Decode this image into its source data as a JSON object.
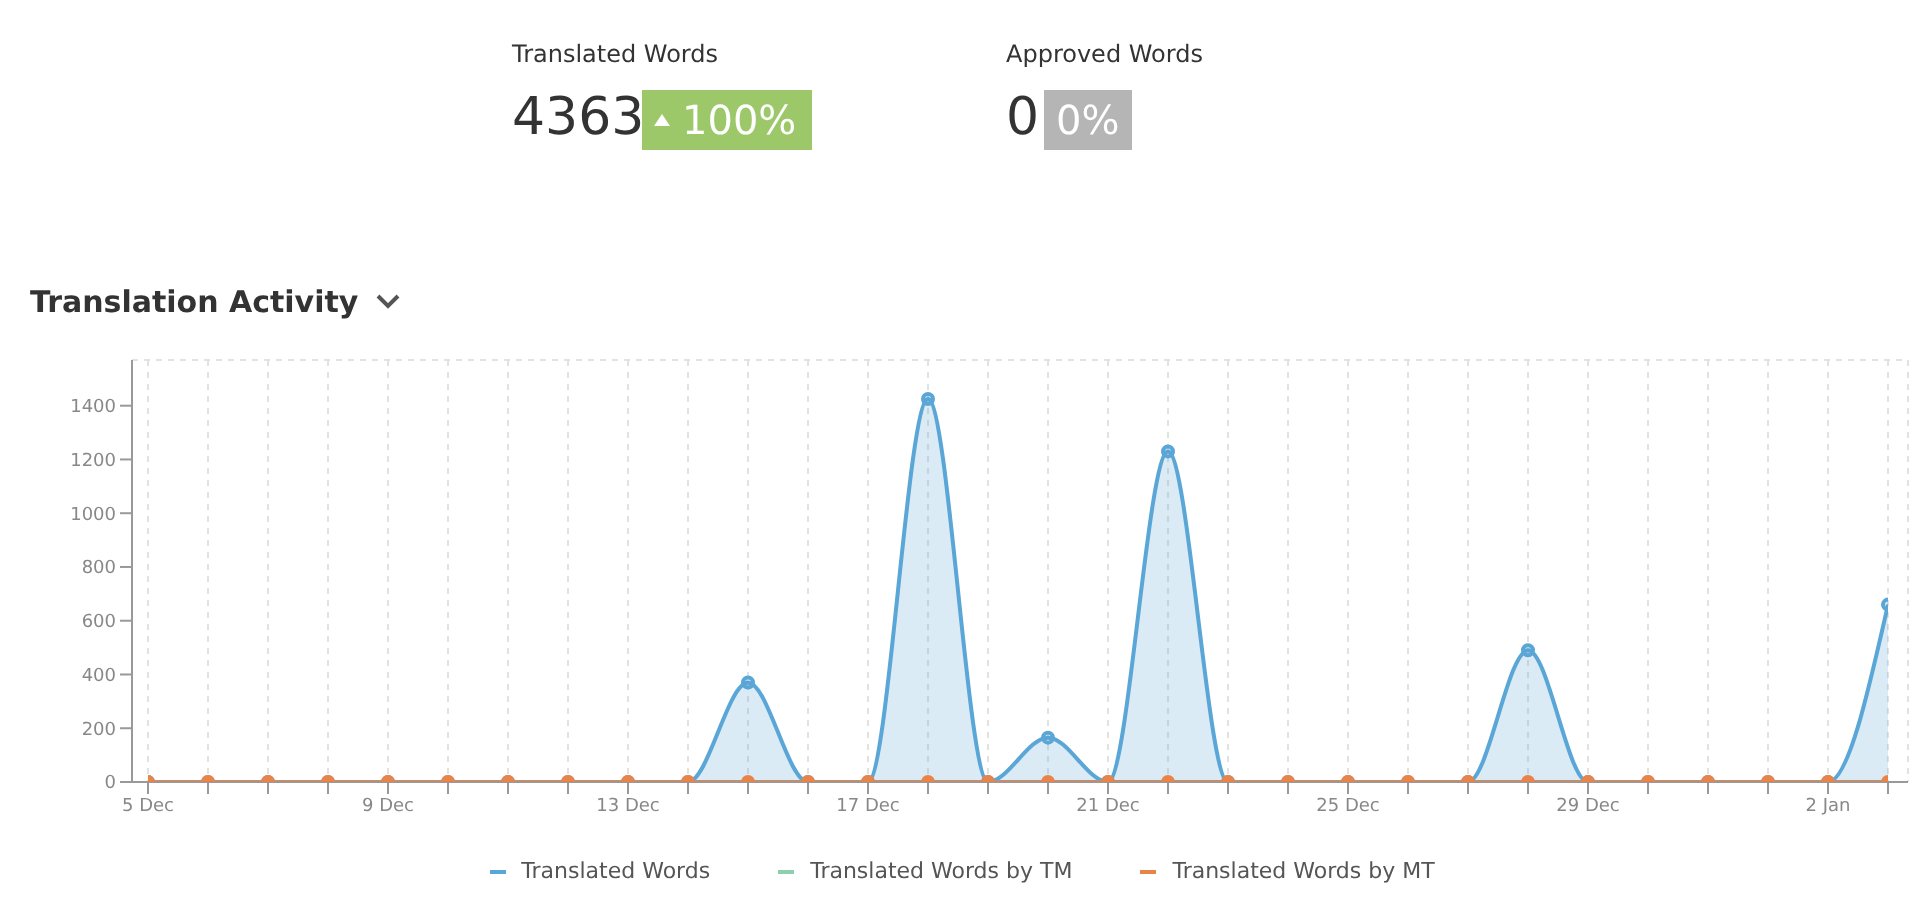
{
  "chart_data": [
    {
      "type": "other",
      "annotations": [
        "Translated Words",
        "4363",
        "100%",
        "Approved Words",
        "0",
        "0%"
      ]
    },
    {
      "type": "area",
      "title": "Translation Activity",
      "categories": [
        "5 Dec",
        null,
        null,
        null,
        "9 Dec",
        null,
        null,
        null,
        "13 Dec",
        null,
        null,
        null,
        "17 Dec",
        null,
        null,
        null,
        "21 Dec",
        null,
        null,
        null,
        "25 Dec",
        null,
        null,
        null,
        "29 Dec",
        null,
        null,
        null,
        "2 Jan",
        null
      ],
      "series": [
        {
          "name": "Translated Words",
          "type": "area",
          "color": "#5aa6d6",
          "values": [
            0,
            0,
            0,
            0,
            0,
            0,
            0,
            0,
            0,
            0,
            370,
            0,
            0,
            1425,
            0,
            165,
            0,
            1230,
            0,
            0,
            0,
            0,
            0,
            490,
            0,
            0,
            0,
            0,
            0,
            660
          ]
        },
        {
          "name": "Translated Words by TM",
          "type": "line",
          "color": "#8ecfb0",
          "values": [
            null,
            null,
            null,
            null,
            null,
            null,
            null,
            null,
            null,
            null,
            null,
            null,
            null,
            null,
            null,
            null,
            null,
            null,
            null,
            null,
            null,
            null,
            null,
            null,
            null,
            null,
            null,
            null,
            null,
            null
          ]
        },
        {
          "name": "Translated Words by MT",
          "type": "line",
          "color": "#e8844a",
          "values": [
            0,
            0,
            0,
            0,
            0,
            0,
            0,
            0,
            0,
            0,
            0,
            0,
            0,
            0,
            0,
            0,
            0,
            0,
            0,
            0,
            0,
            0,
            0,
            0,
            0,
            0,
            0,
            0,
            0,
            0
          ]
        }
      ],
      "ylim": [
        0,
        1570
      ],
      "yticks": [
        0,
        200,
        400,
        600,
        800,
        1000,
        1200,
        1400
      ],
      "grid": true,
      "legend": "bottom",
      "marker": "circle",
      "line_style": "solid"
    }
  ]
}
